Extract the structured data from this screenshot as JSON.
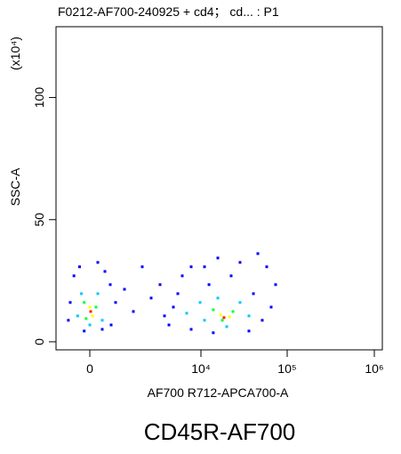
{
  "chart_data": {
    "type": "scatter",
    "title": "F0212-AF700-240925 + cd4； cd... : P1",
    "x_label": "AF700 R712-APCA700-A",
    "y_label": "SSC-A",
    "y_unit": "(x10⁴)",
    "caption": "CD45R-AF700",
    "xlim": [
      -2900,
      1240000
    ],
    "xticks": [
      0,
      {
        "value": 10000,
        "label": "10⁴"
      },
      {
        "value": 100000,
        "label": "10⁵"
      },
      {
        "value": 1000000,
        "label": "10⁶"
      }
    ],
    "ylim": [
      -3.3,
      129
    ],
    "yticks": [
      0,
      50,
      100
    ],
    "series": [
      {
        "color": "#0000ff",
        "x": [
          -1360,
          -880,
          720,
          1360,
          1840,
          -1680,
          -1840,
          1920,
          -480,
          1120,
          2320,
          3120,
          3920,
          4720,
          5520,
          6320,
          7520,
          8320,
          9120,
          6720,
          7120,
          7920,
          11000,
          15700,
          28400,
          45700,
          57900,
          73400,
          51400,
          36000,
          13900,
          9120,
          22400,
          40600,
          65200,
          12400
        ],
        "values": [
          27.0,
          30.7,
          32.5,
          28.8,
          23.4,
          16.1,
          8.8,
          6.9,
          4.4,
          5.1,
          16.1,
          21.5,
          12.4,
          30.7,
          17.9,
          23.4,
          14.2,
          27.0,
          30.7,
          10.6,
          6.9,
          19.7,
          30.7,
          34.3,
          32.5,
          36.1,
          30.7,
          23.4,
          8.8,
          4.4,
          3.7,
          5.1,
          27.0,
          19.7,
          14.2,
          23.4
        ]
      },
      {
        "color": "#00c8ff",
        "x": [
          -720,
          720,
          -1040,
          1120,
          0,
          9920,
          15700,
          28400,
          36000,
          11000,
          19900,
          8720
        ],
        "values": [
          19.7,
          19.7,
          10.6,
          8.8,
          6.9,
          16.1,
          17.9,
          16.1,
          10.6,
          8.8,
          6.2,
          11.7
        ]
      },
      {
        "color": "#00ff40",
        "x": [
          -480,
          560,
          -320,
          13900,
          23500,
          17700
        ],
        "values": [
          16.1,
          14.2,
          9.5,
          13.1,
          12.4,
          8.8
        ]
      },
      {
        "color": "#ffff00",
        "x": [
          0,
          240,
          16900,
          21400
        ],
        "values": [
          14.2,
          10.6,
          11.0,
          10.2
        ]
      },
      {
        "color": "#ff2000",
        "x": [
          80,
          18500
        ],
        "values": [
          12.4,
          9.9
        ]
      }
    ]
  }
}
